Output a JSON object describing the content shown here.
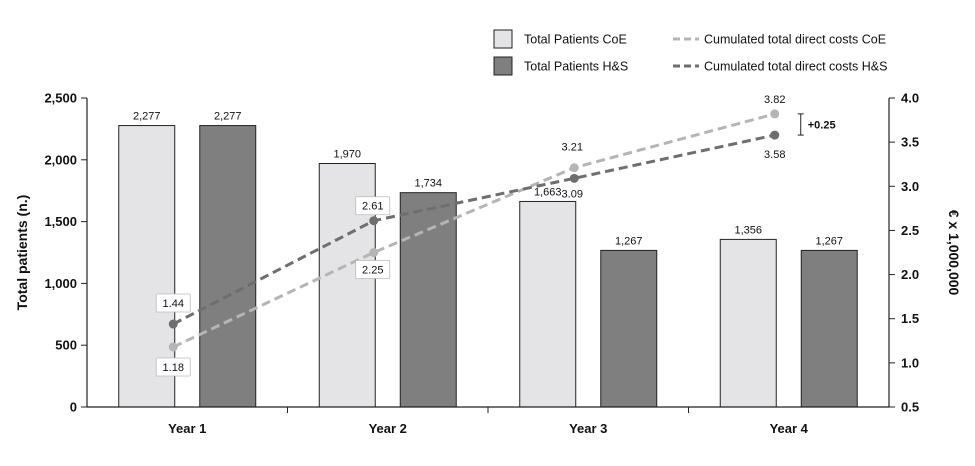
{
  "chart_data": {
    "type": "bar",
    "categories": [
      "Year 1",
      "Year 2",
      "Year 3",
      "Year 4"
    ],
    "ylabel": "Total patients (n.)",
    "y2label": "€ x 1,000,000",
    "ylim": [
      0,
      2500
    ],
    "y2lim": [
      0.5,
      4.0
    ],
    "yticks": [
      "0",
      "500",
      "1,000",
      "1,500",
      "2,000",
      "2,500"
    ],
    "y2ticks": [
      "0.5",
      "1.0",
      "1.5",
      "2.0",
      "2.5",
      "3.0",
      "3.5",
      "4.0"
    ],
    "legend_position": "top-right",
    "series": [
      {
        "name": "Total Patients CoE",
        "kind": "bar",
        "axis": "left",
        "color": "#e4e4e6",
        "values": [
          2277,
          1970,
          1663,
          1356
        ],
        "labels": [
          "2,277",
          "1,970",
          "1,663",
          "1,356"
        ]
      },
      {
        "name": "Total Patients H&S",
        "kind": "bar",
        "axis": "left",
        "color": "#7f7f7f",
        "values": [
          2277,
          1734,
          1267,
          1267
        ],
        "labels": [
          "2,277",
          "1,734",
          "1,267",
          "1,267"
        ]
      },
      {
        "name": "Cumulated total direct costs CoE",
        "kind": "dashed-line",
        "axis": "right",
        "color": "#b5b5b5",
        "values": [
          1.18,
          2.25,
          3.21,
          3.82
        ],
        "labels": [
          "1.18",
          "2.25",
          "3.21",
          "3.82"
        ]
      },
      {
        "name": "Cumulated total direct costs H&S",
        "kind": "dashed-line",
        "axis": "right",
        "color": "#6e6e6e",
        "values": [
          1.44,
          2.61,
          3.09,
          3.58
        ],
        "labels": [
          "1.44",
          "2.61",
          "3.09",
          "3.58"
        ]
      }
    ],
    "annotations": [
      {
        "text": "+0.25",
        "category": "Year 4",
        "between": [
          3.58,
          3.82
        ]
      }
    ]
  }
}
